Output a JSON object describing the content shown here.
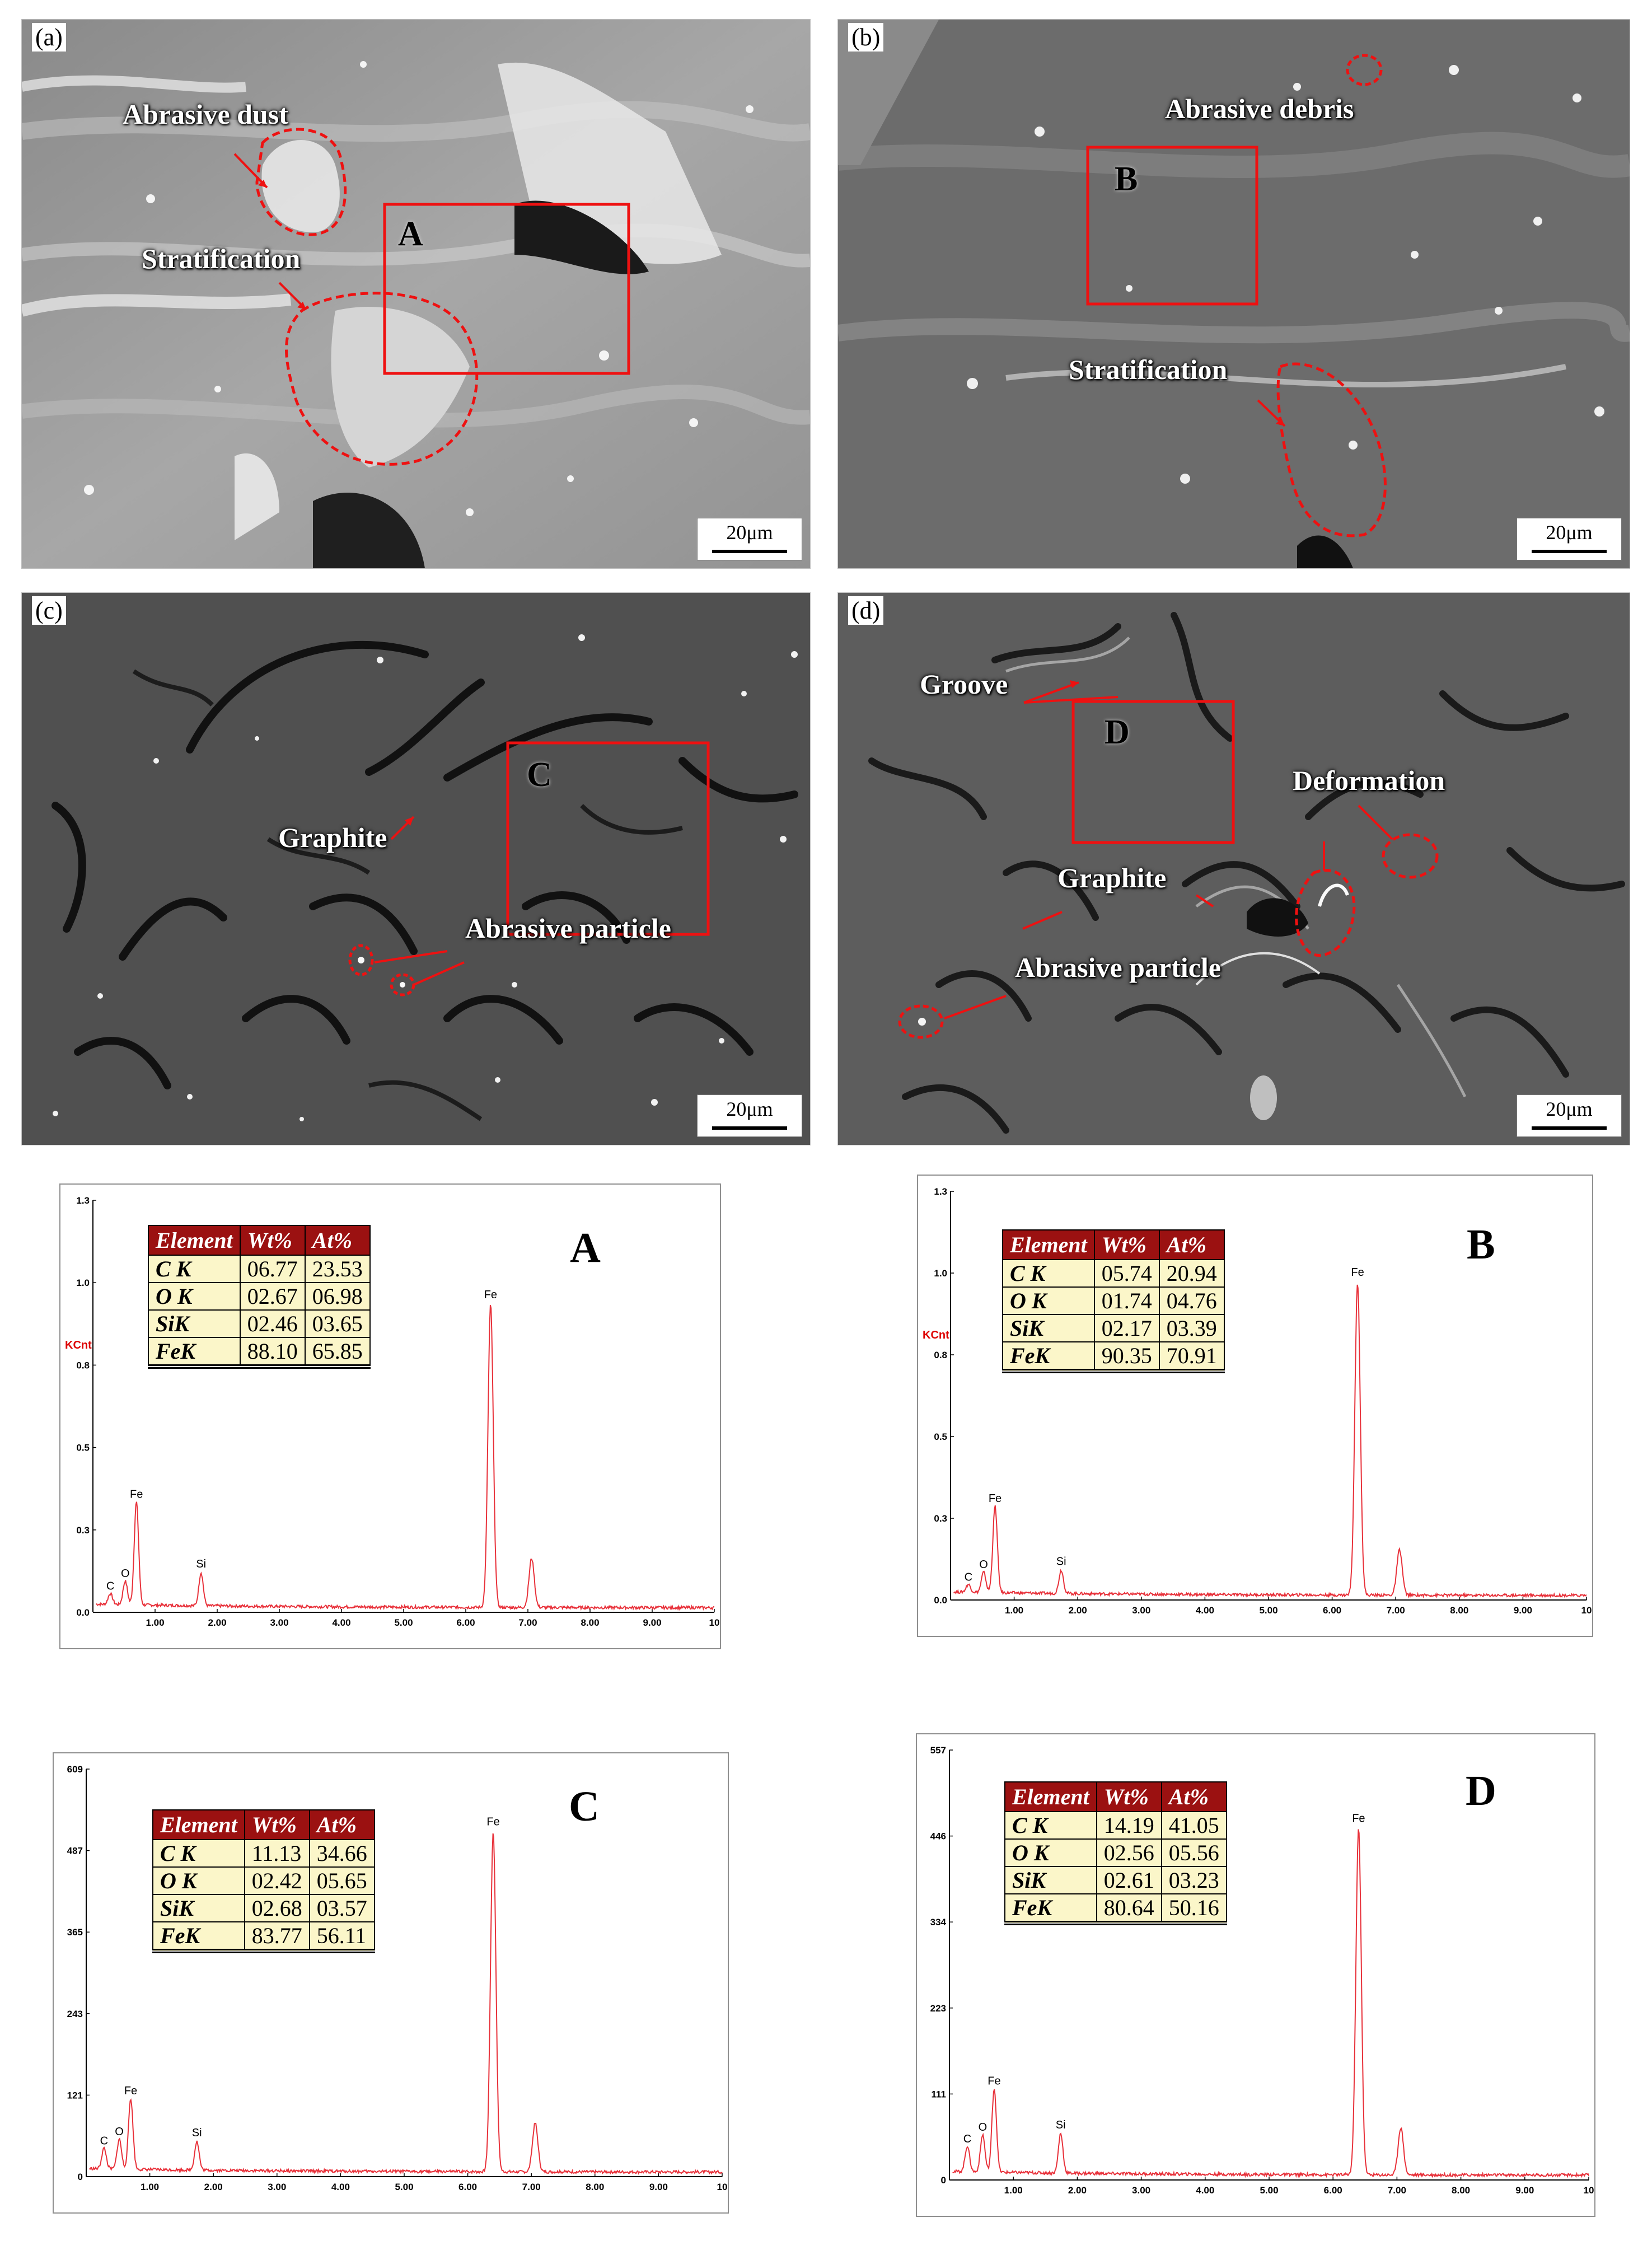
{
  "panels": {
    "a": {
      "label": "(a)",
      "scale": "20μm",
      "box_letter": "A",
      "annotations": [
        "Abrasive dust",
        "Stratification"
      ]
    },
    "b": {
      "label": "(b)",
      "scale": "20μm",
      "box_letter": "B",
      "annotations": [
        "Abrasive debris",
        "Stratification"
      ]
    },
    "c": {
      "label": "(c)",
      "scale": "20μm",
      "box_letter": "C",
      "annotations": [
        "Graphite",
        "Abrasive particle"
      ]
    },
    "d": {
      "label": "(d)",
      "scale": "20μm",
      "box_letter": "D",
      "annotations": [
        "Groove",
        "Deformation",
        "Graphite",
        "Abrasive particle"
      ]
    }
  },
  "table_headers": [
    "Element",
    "Wt%",
    "At%"
  ],
  "chart_data": [
    {
      "type": "line",
      "title": "A",
      "ylabel": "KCnt",
      "xlabel": "",
      "x_ticks": [
        "1.00",
        "2.00",
        "3.00",
        "4.00",
        "5.00",
        "6.00",
        "7.00",
        "8.00",
        "9.00",
        "10"
      ],
      "y_ticks": [
        "0.0",
        "0.3",
        "0.5",
        "0.8",
        "1.0",
        "1.3"
      ],
      "xlim": [
        0,
        10
      ],
      "ylim": [
        0,
        1.3
      ],
      "peaks": [
        {
          "label": "C",
          "x": 0.28,
          "y": 0.05
        },
        {
          "label": "O",
          "x": 0.52,
          "y": 0.09
        },
        {
          "label": "Fe",
          "x": 0.7,
          "y": 0.34
        },
        {
          "label": "Si",
          "x": 1.74,
          "y": 0.12
        },
        {
          "label": "Fe",
          "x": 6.4,
          "y": 0.97
        },
        {
          "label": "",
          "x": 7.06,
          "y": 0.17
        }
      ],
      "table": [
        [
          "C K",
          "06.77",
          "23.53"
        ],
        [
          "O K",
          "02.67",
          "06.98"
        ],
        [
          "SiK",
          "02.46",
          "03.65"
        ],
        [
          "FeK",
          "88.10",
          "65.85"
        ]
      ]
    },
    {
      "type": "line",
      "title": "B",
      "ylabel": "KCnt",
      "xlabel": "",
      "x_ticks": [
        "1.00",
        "2.00",
        "3.00",
        "4.00",
        "5.00",
        "6.00",
        "7.00",
        "8.00",
        "9.00",
        "10"
      ],
      "y_ticks": [
        "0.0",
        "0.3",
        "0.5",
        "0.8",
        "1.0",
        "1.3"
      ],
      "xlim": [
        0,
        10
      ],
      "ylim": [
        0,
        1.3
      ],
      "peaks": [
        {
          "label": "C",
          "x": 0.28,
          "y": 0.04
        },
        {
          "label": "O",
          "x": 0.52,
          "y": 0.08
        },
        {
          "label": "Fe",
          "x": 0.7,
          "y": 0.29
        },
        {
          "label": "Si",
          "x": 1.74,
          "y": 0.09
        },
        {
          "label": "Fe",
          "x": 6.4,
          "y": 1.01
        },
        {
          "label": "",
          "x": 7.06,
          "y": 0.16
        }
      ],
      "table": [
        [
          "C K",
          "05.74",
          "20.94"
        ],
        [
          "O K",
          "01.74",
          "04.76"
        ],
        [
          "SiK",
          "02.17",
          "03.39"
        ],
        [
          "FeK",
          "90.35",
          "70.91"
        ]
      ]
    },
    {
      "type": "line",
      "title": "C",
      "ylabel": "",
      "xlabel": "",
      "x_ticks": [
        "1.00",
        "2.00",
        "3.00",
        "4.00",
        "5.00",
        "6.00",
        "7.00",
        "8.00",
        "9.00",
        "10"
      ],
      "y_ticks": [
        "0",
        "121",
        "243",
        "365",
        "487",
        "609"
      ],
      "xlim": [
        0,
        10
      ],
      "ylim": [
        0,
        609
      ],
      "peaks": [
        {
          "label": "C",
          "x": 0.28,
          "y": 38
        },
        {
          "label": "O",
          "x": 0.52,
          "y": 52
        },
        {
          "label": "Fe",
          "x": 0.7,
          "y": 113
        },
        {
          "label": "Si",
          "x": 1.74,
          "y": 50
        },
        {
          "label": "Fe",
          "x": 6.4,
          "y": 515
        },
        {
          "label": "",
          "x": 7.06,
          "y": 80
        }
      ],
      "table": [
        [
          "C K",
          "11.13",
          "34.66"
        ],
        [
          "O K",
          "02.42",
          "05.65"
        ],
        [
          "SiK",
          "02.68",
          "03.57"
        ],
        [
          "FeK",
          "83.77",
          "56.11"
        ]
      ]
    },
    {
      "type": "line",
      "title": "D",
      "ylabel": "",
      "xlabel": "",
      "x_ticks": [
        "1.00",
        "2.00",
        "3.00",
        "4.00",
        "5.00",
        "6.00",
        "7.00",
        "8.00",
        "9.00",
        "10"
      ],
      "y_ticks": [
        "0",
        "111",
        "223",
        "334",
        "446",
        "557"
      ],
      "xlim": [
        0,
        10
      ],
      "ylim": [
        0,
        557
      ],
      "peaks": [
        {
          "label": "C",
          "x": 0.28,
          "y": 40
        },
        {
          "label": "O",
          "x": 0.52,
          "y": 55
        },
        {
          "label": "Fe",
          "x": 0.7,
          "y": 115
        },
        {
          "label": "Si",
          "x": 1.74,
          "y": 58
        },
        {
          "label": "Fe",
          "x": 6.4,
          "y": 455
        },
        {
          "label": "",
          "x": 7.06,
          "y": 68
        }
      ],
      "table": [
        [
          "C K",
          "14.19",
          "41.05"
        ],
        [
          "O K",
          "02.56",
          "05.56"
        ],
        [
          "SiK",
          "02.61",
          "03.23"
        ],
        [
          "FeK",
          "80.64",
          "50.16"
        ]
      ]
    }
  ]
}
